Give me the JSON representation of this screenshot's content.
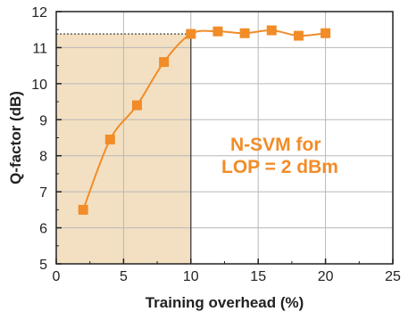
{
  "chart_data": {
    "type": "line",
    "xlabel": "Training overhead (%)",
    "ylabel": "Q-factor (dB)",
    "xlim": [
      0,
      25
    ],
    "ylim": [
      5,
      12
    ],
    "xticks": [
      "0",
      "5",
      "10",
      "15",
      "20",
      "25"
    ],
    "yticks": [
      "5",
      "6",
      "7",
      "8",
      "9",
      "10",
      "11",
      "12"
    ],
    "grid": true,
    "series": [
      {
        "color": "#F28C28",
        "marker": "square",
        "x": [
          2,
          4,
          6,
          8,
          10,
          12,
          14,
          16,
          18,
          20
        ],
        "y": [
          6.5,
          8.45,
          9.4,
          10.6,
          11.38,
          11.45,
          11.4,
          11.48,
          11.33,
          11.4
        ]
      }
    ],
    "shaded_region": {
      "x": [
        0,
        10
      ],
      "y": [
        5,
        11.38
      ],
      "color": "#F3E0C2"
    },
    "reference_line": {
      "y": 11.38,
      "x": [
        0,
        10
      ],
      "style": "dotted"
    },
    "annotation": [
      "N-SVM for",
      "LOP = 2 dBm"
    ],
    "annotation_color": "#F28C28"
  }
}
